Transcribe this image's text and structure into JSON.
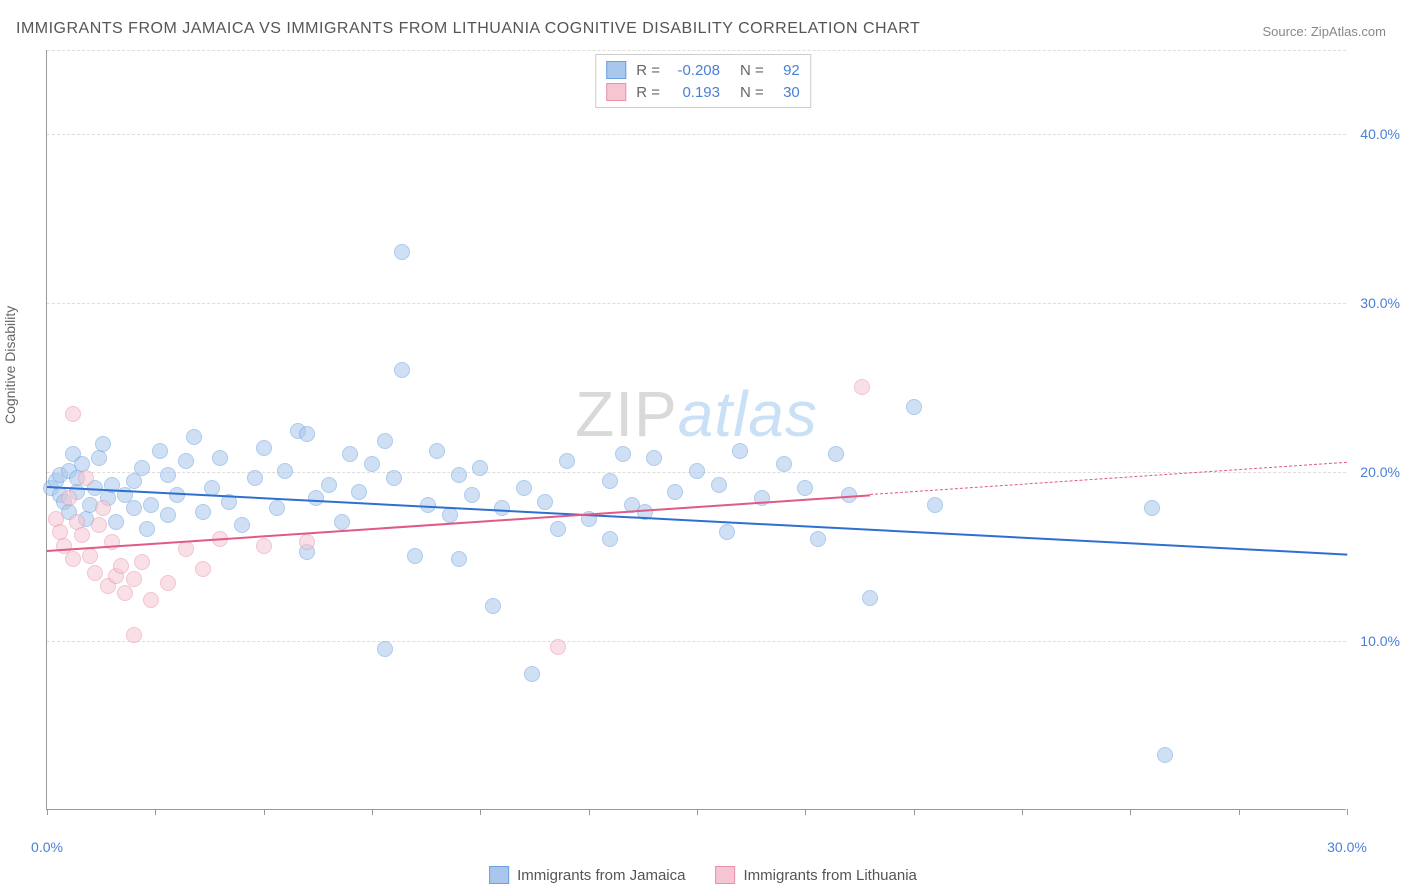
{
  "title": "IMMIGRANTS FROM JAMAICA VS IMMIGRANTS FROM LITHUANIA COGNITIVE DISABILITY CORRELATION CHART",
  "source_label": "Source: ",
  "source_name": "ZipAtlas.com",
  "ylabel": "Cognitive Disability",
  "watermark": {
    "part1": "ZIP",
    "part2": "atlas"
  },
  "chart": {
    "type": "scatter",
    "background_color": "#ffffff",
    "grid_color": "#dddddd",
    "axis_color": "#999999",
    "tick_label_color": "#4a7fd8",
    "xlim": [
      0,
      30
    ],
    "ylim": [
      0,
      45
    ],
    "x_ticks": [
      0,
      2.5,
      5,
      7.5,
      10,
      12.5,
      15,
      17.5,
      20,
      22.5,
      25,
      27.5,
      30
    ],
    "x_tick_labels": {
      "0": "0.0%",
      "30": "30.0%"
    },
    "y_gridlines": [
      10,
      20,
      30,
      40,
      45
    ],
    "y_tick_labels": {
      "10": "10.0%",
      "20": "20.0%",
      "30": "30.0%",
      "40": "40.0%"
    },
    "marker_radius": 8,
    "marker_opacity": 0.55,
    "series": [
      {
        "id": "jamaica",
        "label": "Immigrants from Jamaica",
        "fill_color": "#a9c7ec",
        "stroke_color": "#6b9fe0",
        "line_color": "#2f6fd0",
        "R": "-0.208",
        "N": "92",
        "trend": {
          "x1": 0,
          "y1": 19.2,
          "x2": 30,
          "y2": 15.2,
          "solid_until_x": 30
        },
        "points": [
          [
            0.1,
            19.0
          ],
          [
            0.2,
            19.4
          ],
          [
            0.3,
            18.6
          ],
          [
            0.3,
            19.8
          ],
          [
            0.4,
            18.2
          ],
          [
            0.5,
            20.0
          ],
          [
            0.5,
            17.6
          ],
          [
            0.6,
            21.0
          ],
          [
            0.7,
            18.8
          ],
          [
            0.7,
            19.6
          ],
          [
            0.8,
            20.4
          ],
          [
            0.9,
            17.2
          ],
          [
            1.0,
            18.0
          ],
          [
            1.1,
            19.0
          ],
          [
            1.2,
            20.8
          ],
          [
            1.3,
            21.6
          ],
          [
            1.4,
            18.4
          ],
          [
            1.5,
            19.2
          ],
          [
            1.6,
            17.0
          ],
          [
            1.8,
            18.6
          ],
          [
            2.0,
            19.4
          ],
          [
            2.0,
            17.8
          ],
          [
            2.2,
            20.2
          ],
          [
            2.3,
            16.6
          ],
          [
            2.4,
            18.0
          ],
          [
            2.6,
            21.2
          ],
          [
            2.8,
            17.4
          ],
          [
            2.8,
            19.8
          ],
          [
            3.0,
            18.6
          ],
          [
            3.2,
            20.6
          ],
          [
            3.4,
            22.0
          ],
          [
            3.6,
            17.6
          ],
          [
            3.8,
            19.0
          ],
          [
            4.0,
            20.8
          ],
          [
            4.2,
            18.2
          ],
          [
            4.5,
            16.8
          ],
          [
            4.8,
            19.6
          ],
          [
            5.0,
            21.4
          ],
          [
            5.3,
            17.8
          ],
          [
            5.5,
            20.0
          ],
          [
            5.8,
            22.4
          ],
          [
            6.0,
            22.2
          ],
          [
            6.2,
            18.4
          ],
          [
            6.5,
            19.2
          ],
          [
            6.8,
            17.0
          ],
          [
            7.0,
            21.0
          ],
          [
            7.2,
            18.8
          ],
          [
            7.5,
            20.4
          ],
          [
            7.8,
            21.8
          ],
          [
            8.0,
            19.6
          ],
          [
            8.2,
            26.0
          ],
          [
            8.2,
            33.0
          ],
          [
            8.5,
            15.0
          ],
          [
            8.8,
            18.0
          ],
          [
            9.0,
            21.2
          ],
          [
            9.3,
            17.4
          ],
          [
            9.5,
            19.8
          ],
          [
            9.8,
            18.6
          ],
          [
            10.0,
            20.2
          ],
          [
            10.5,
            17.8
          ],
          [
            10.3,
            12.0
          ],
          [
            11.0,
            19.0
          ],
          [
            11.5,
            18.2
          ],
          [
            11.2,
            8.0
          ],
          [
            11.8,
            16.6
          ],
          [
            12.0,
            20.6
          ],
          [
            12.5,
            17.2
          ],
          [
            13.0,
            19.4
          ],
          [
            13.3,
            21.0
          ],
          [
            13.5,
            18.0
          ],
          [
            13.8,
            17.6
          ],
          [
            14.0,
            20.8
          ],
          [
            13.0,
            16.0
          ],
          [
            14.5,
            18.8
          ],
          [
            15.0,
            20.0
          ],
          [
            15.5,
            19.2
          ],
          [
            15.7,
            16.4
          ],
          [
            16.0,
            21.2
          ],
          [
            16.5,
            18.4
          ],
          [
            17.0,
            20.4
          ],
          [
            17.5,
            19.0
          ],
          [
            17.8,
            16.0
          ],
          [
            18.2,
            21.0
          ],
          [
            18.5,
            18.6
          ],
          [
            19.0,
            12.5
          ],
          [
            20.0,
            23.8
          ],
          [
            20.5,
            18.0
          ],
          [
            25.5,
            17.8
          ],
          [
            25.8,
            3.2
          ],
          [
            7.8,
            9.5
          ],
          [
            9.5,
            14.8
          ],
          [
            6.0,
            15.2
          ]
        ]
      },
      {
        "id": "lithuania",
        "label": "Immigrants from Lithuania",
        "fill_color": "#f5c6d2",
        "stroke_color": "#e693ab",
        "line_color": "#e05a85",
        "R": "0.193",
        "N": "30",
        "trend": {
          "x1": 0,
          "y1": 15.4,
          "x2": 30,
          "y2": 20.6,
          "solid_until_x": 19
        },
        "points": [
          [
            0.2,
            17.2
          ],
          [
            0.3,
            16.4
          ],
          [
            0.4,
            15.6
          ],
          [
            0.5,
            18.4
          ],
          [
            0.6,
            23.4
          ],
          [
            0.6,
            14.8
          ],
          [
            0.7,
            17.0
          ],
          [
            0.8,
            16.2
          ],
          [
            0.9,
            19.6
          ],
          [
            1.0,
            15.0
          ],
          [
            1.1,
            14.0
          ],
          [
            1.2,
            16.8
          ],
          [
            1.3,
            17.8
          ],
          [
            1.4,
            13.2
          ],
          [
            1.5,
            15.8
          ],
          [
            1.6,
            13.8
          ],
          [
            1.7,
            14.4
          ],
          [
            1.8,
            12.8
          ],
          [
            2.0,
            13.6
          ],
          [
            2.2,
            14.6
          ],
          [
            2.4,
            12.4
          ],
          [
            2.0,
            10.3
          ],
          [
            2.8,
            13.4
          ],
          [
            3.2,
            15.4
          ],
          [
            3.6,
            14.2
          ],
          [
            4.0,
            16.0
          ],
          [
            5.0,
            15.6
          ],
          [
            6.0,
            15.8
          ],
          [
            11.8,
            9.6
          ],
          [
            18.8,
            25.0
          ]
        ]
      }
    ]
  },
  "legend_top": {
    "R_label": "R =",
    "N_label": "N ="
  }
}
